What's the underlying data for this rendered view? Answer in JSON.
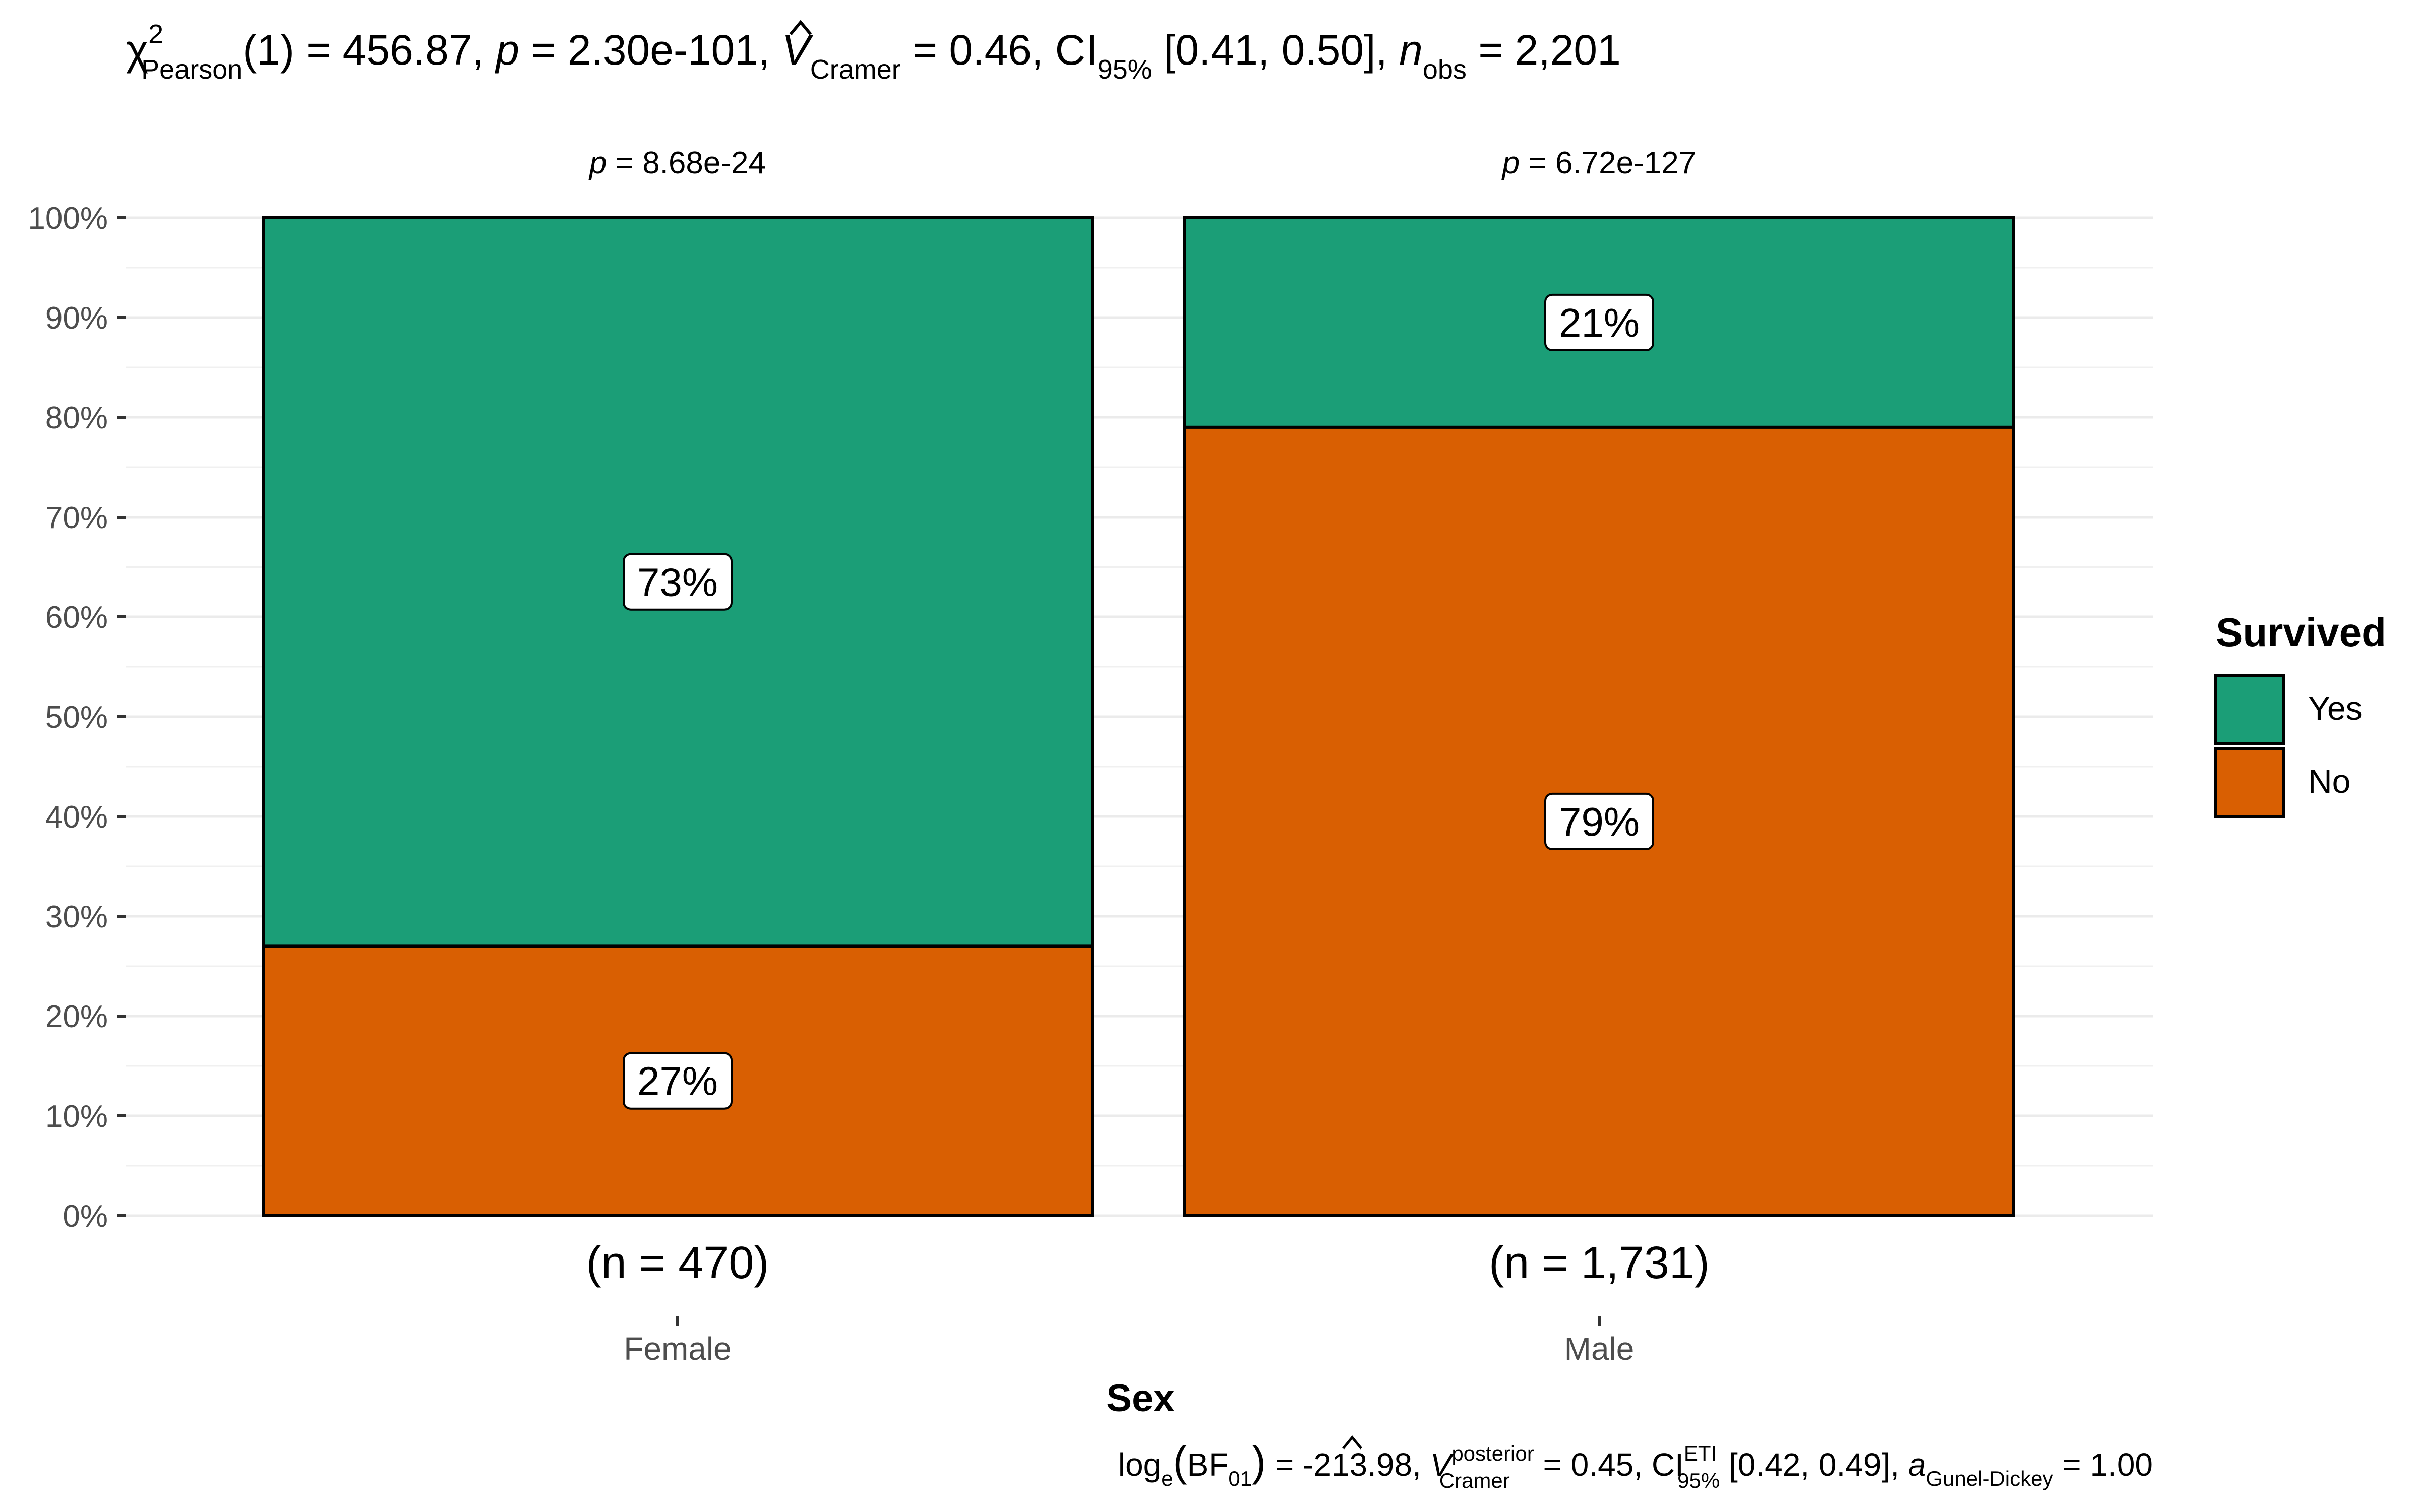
{
  "chart_data": {
    "type": "bar",
    "stacked": true,
    "orientation": "vertical",
    "subtitle_stats": {
      "chi_sym": "χ",
      "chi_sup": "2",
      "chi_sub": "Pearson",
      "df_part": "(1) = 456.87, ",
      "p_label": "p",
      "p_part": " = 2.30e-101, ",
      "v_sym": "V",
      "v_sub": "Cramer",
      "v_part": " = 0.46, CI",
      "ci_sub": "95%",
      "ci_part": " [0.41, 0.50], ",
      "n_label": "n",
      "n_sub": "obs",
      "n_part": " = 2,201"
    },
    "caption_stats": {
      "log_label": "log",
      "log_sub": "e",
      "bf_open": "(",
      "bf_label": "BF",
      "bf_sub": "01",
      "bf_close": ")",
      "bf_part": " = -213.98, ",
      "v_sym": "V",
      "v_sup": "posterior",
      "v_sub": "Cramer",
      "v_part": " = 0.45, CI",
      "ci_sup": "ETI",
      "ci_sub": "95%",
      "ci_part": " [0.42, 0.49], ",
      "a_label": "a",
      "a_sub": "Gunel-Dickey",
      "a_part": " = 1.00"
    },
    "categories": [
      "Female",
      "Male"
    ],
    "category_counts": [
      "(n = 470)",
      "(n = 1,731)"
    ],
    "category_pvalues": [
      {
        "label": "p",
        "text": " = 8.68e-24"
      },
      {
        "label": "p",
        "text": " = 6.72e-127"
      }
    ],
    "series": [
      {
        "name": "No",
        "values": [
          27,
          79
        ],
        "labels": [
          "27%",
          "79%"
        ],
        "color": "#D95F02"
      },
      {
        "name": "Yes",
        "values": [
          73,
          21
        ],
        "labels": [
          "73%",
          "21%"
        ],
        "color": "#1B9E77"
      }
    ],
    "xlabel": "Sex",
    "ylabel": "",
    "ylim": [
      0,
      100
    ],
    "yticks": [
      0,
      10,
      20,
      30,
      40,
      50,
      60,
      70,
      80,
      90,
      100
    ],
    "ytick_labels": [
      "0%",
      "10%",
      "20%",
      "30%",
      "40%",
      "50%",
      "60%",
      "70%",
      "80%",
      "90%",
      "100%"
    ],
    "legend": {
      "title": "Survived",
      "placement": "right",
      "entries": [
        {
          "name": "Yes",
          "color": "#1B9E77"
        },
        {
          "name": "No",
          "color": "#D95F02"
        }
      ]
    },
    "grid": true
  }
}
